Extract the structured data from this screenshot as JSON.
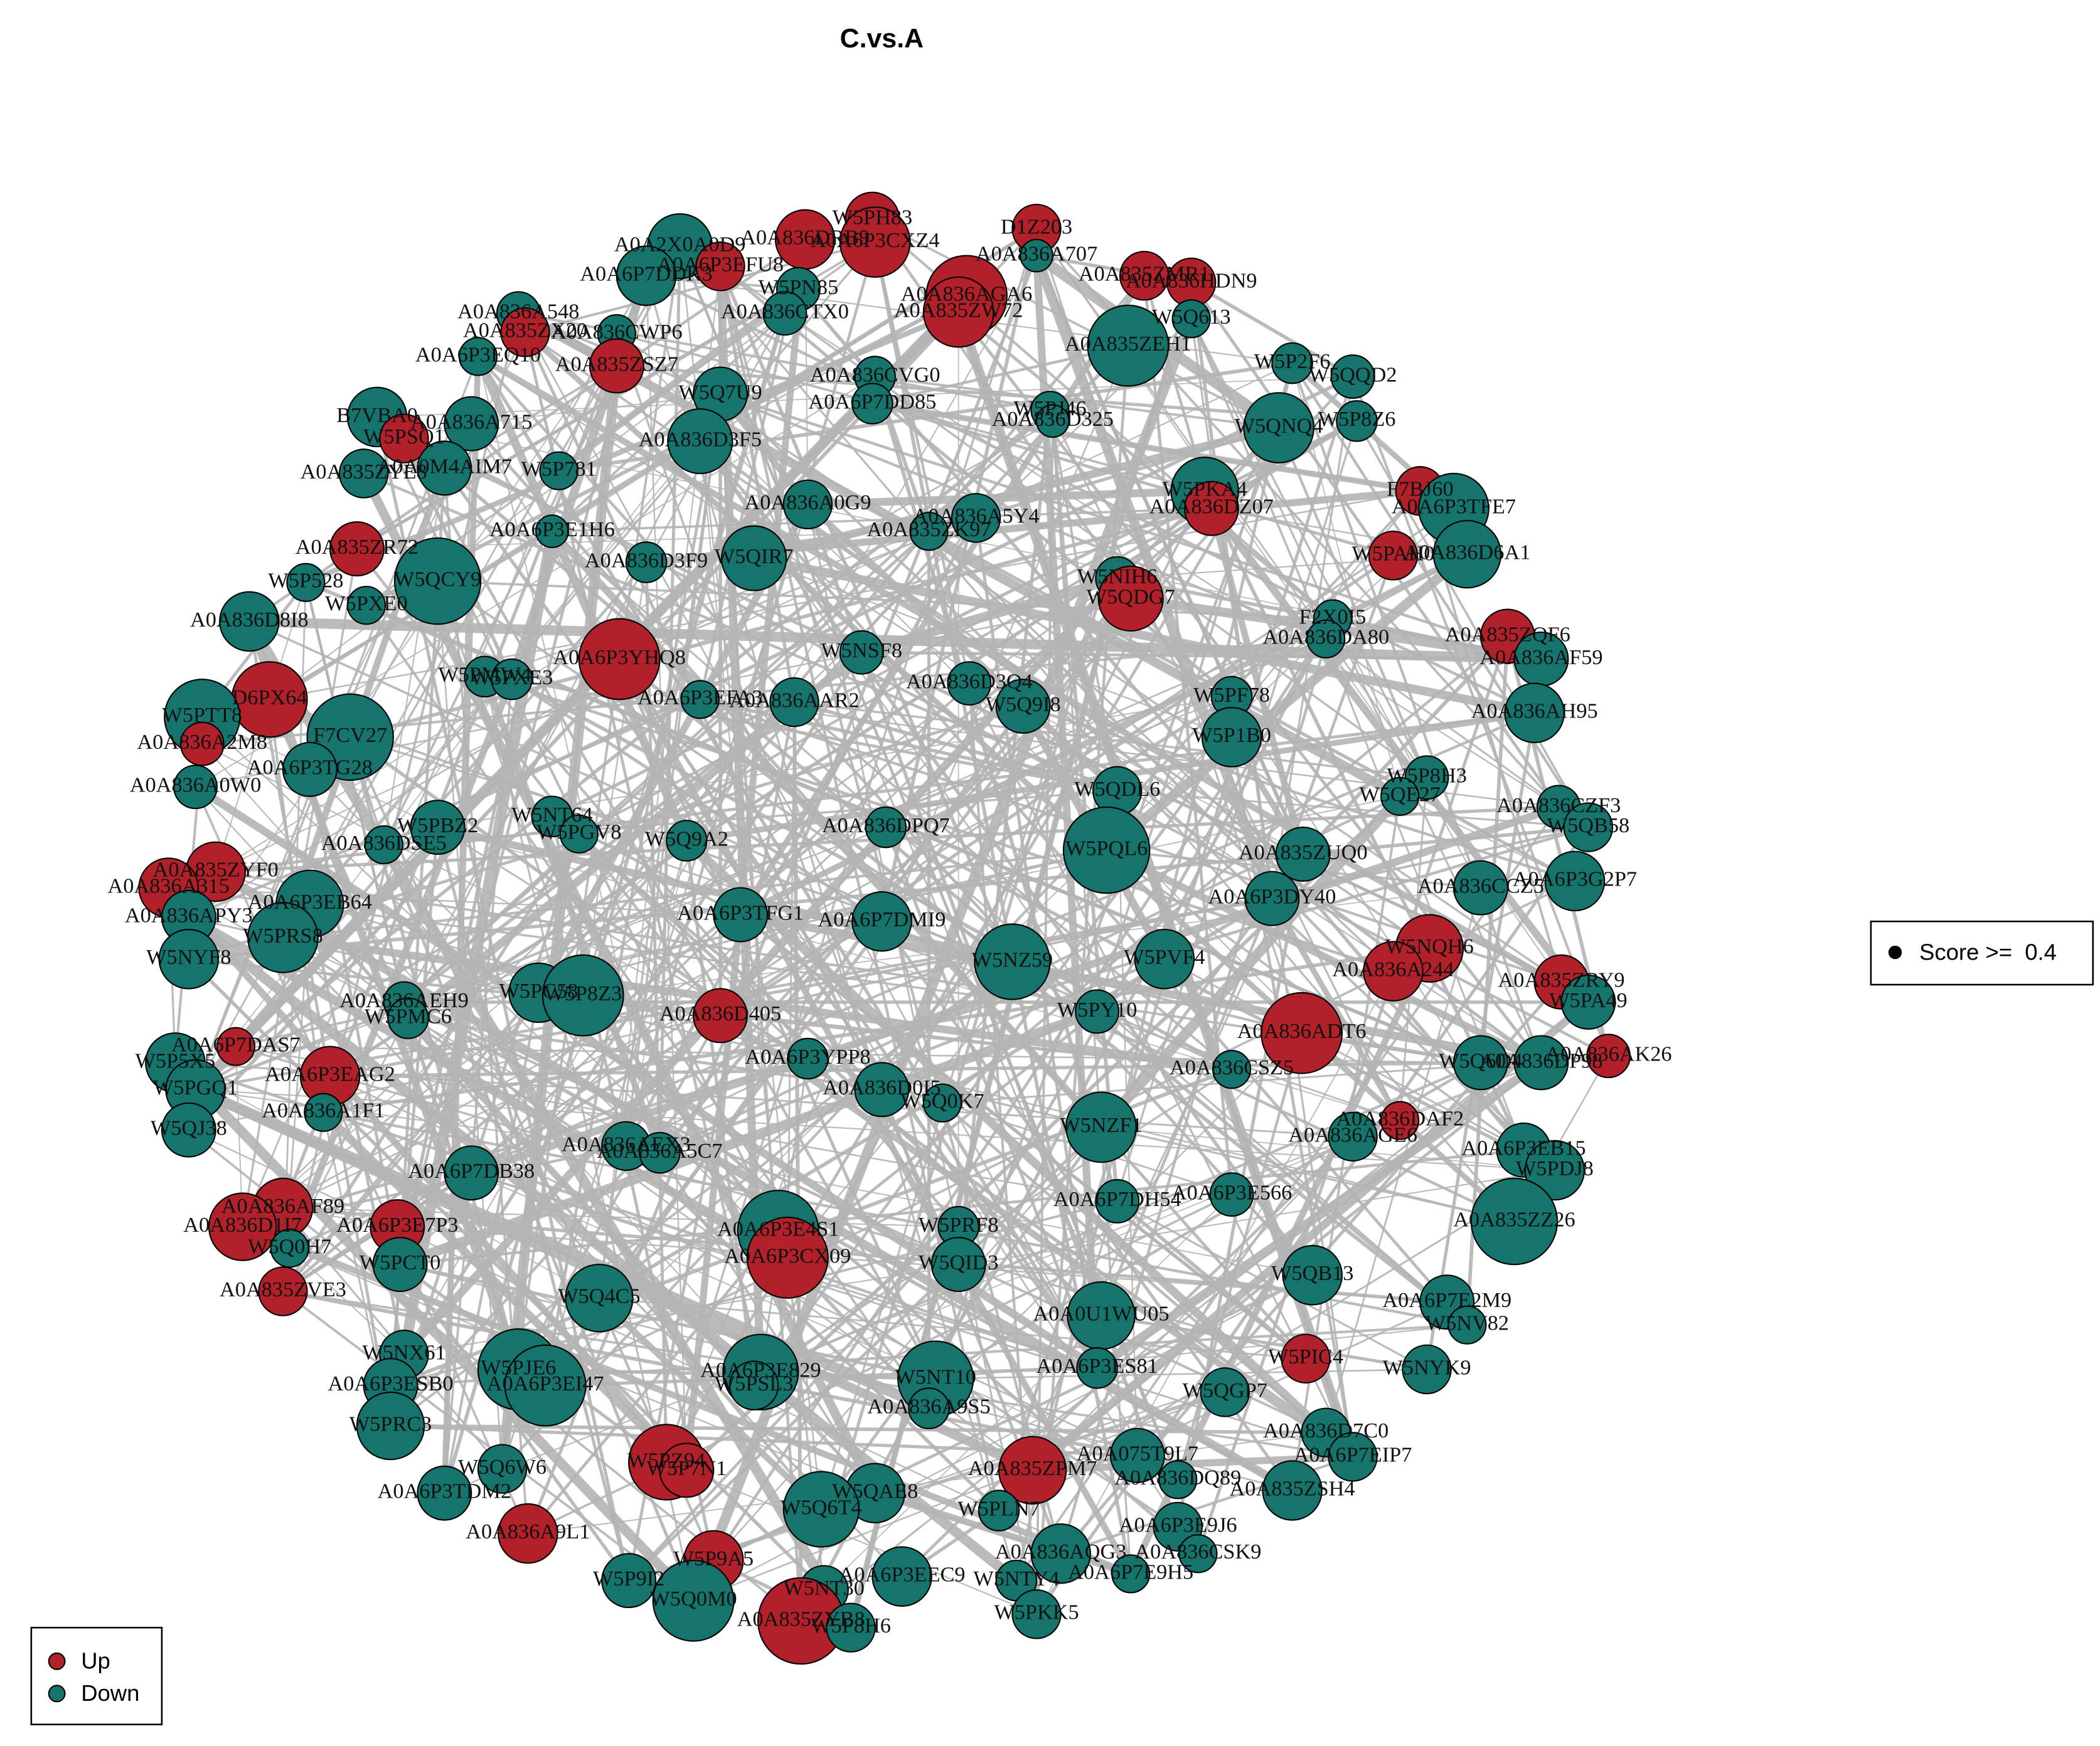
{
  "title": "C.vs.A",
  "score_legend": "Score >=  0.4",
  "legend": [
    {
      "label": "Up",
      "color": "#b2202a"
    },
    {
      "label": "Down",
      "color": "#15756d"
    }
  ],
  "nodes": [
    {
      "label": "A0A2X0A0D9",
      "status": "Down"
    },
    {
      "label": "A0A6P7DDK3",
      "status": "Down"
    },
    {
      "label": "A0A6P3EFU8",
      "status": "Up"
    },
    {
      "label": "W5PH83",
      "status": "Up"
    },
    {
      "label": "A0A836DRB9",
      "status": "Up"
    },
    {
      "label": "A0A6P3CXZ4",
      "status": "Up"
    },
    {
      "label": "D1Z203",
      "status": "Up"
    },
    {
      "label": "A0A836A707",
      "status": "Down"
    },
    {
      "label": "A0A836AGA6",
      "status": "Up"
    },
    {
      "label": "A0A835ZW72",
      "status": "Up"
    },
    {
      "label": "W5PN85",
      "status": "Down"
    },
    {
      "label": "A0A836CTX0",
      "status": "Down"
    },
    {
      "label": "A0A835ZMR1",
      "status": "Up"
    },
    {
      "label": "A0A836HDN9",
      "status": "Up"
    },
    {
      "label": "W5Q613",
      "status": "Down"
    },
    {
      "label": "A0A835ZEH1",
      "status": "Down"
    },
    {
      "label": "A0A836A548",
      "status": "Down"
    },
    {
      "label": "A0A835ZX20",
      "status": "Up"
    },
    {
      "label": "A0A836CWP6",
      "status": "Down"
    },
    {
      "label": "A0A6P3EQ10",
      "status": "Down"
    },
    {
      "label": "A0A835ZSZ7",
      "status": "Up"
    },
    {
      "label": "W5Q7U9",
      "status": "Down"
    },
    {
      "label": "A0A836CVG0",
      "status": "Down"
    },
    {
      "label": "A0A6P7DD85",
      "status": "Down"
    },
    {
      "label": "W5P2F6",
      "status": "Down"
    },
    {
      "label": "W5QQD2",
      "status": "Down"
    },
    {
      "label": "W5PJ46",
      "status": "Down"
    },
    {
      "label": "A0A836D325",
      "status": "Down"
    },
    {
      "label": "W5P8Z6",
      "status": "Down"
    },
    {
      "label": "W5QNQ4",
      "status": "Down"
    },
    {
      "label": "B7VBA0",
      "status": "Down"
    },
    {
      "label": "A0A836A715",
      "status": "Down"
    },
    {
      "label": "W5PSQ1",
      "status": "Up"
    },
    {
      "label": "A0A836D3F5",
      "status": "Down"
    },
    {
      "label": "A0A835ZYE8",
      "status": "Down"
    },
    {
      "label": "A0A0M4AIM7",
      "status": "Down"
    },
    {
      "label": "W5P781",
      "status": "Down"
    },
    {
      "label": "A0A836A0G9",
      "status": "Down"
    },
    {
      "label": "W5PKA4",
      "status": "Down"
    },
    {
      "label": "A0A836DZ07",
      "status": "Up"
    },
    {
      "label": "F7BJ60",
      "status": "Up"
    },
    {
      "label": "A0A6P3TFE7",
      "status": "Down"
    },
    {
      "label": "A0A6P3E1H6",
      "status": "Down"
    },
    {
      "label": "A0A836A5Y4",
      "status": "Down"
    },
    {
      "label": "A0A835ZK97",
      "status": "Down"
    },
    {
      "label": "A0A835ZR72",
      "status": "Up"
    },
    {
      "label": "W5QCY9",
      "status": "Down"
    },
    {
      "label": "W5P528",
      "status": "Down"
    },
    {
      "label": "A0A836D3F9",
      "status": "Down"
    },
    {
      "label": "W5QIR7",
      "status": "Down"
    },
    {
      "label": "A0A836D6A1",
      "status": "Down"
    },
    {
      "label": "W5PAH0",
      "status": "Up"
    },
    {
      "label": "W5NIH6",
      "status": "Down"
    },
    {
      "label": "W5QDG7",
      "status": "Up"
    },
    {
      "label": "W5PXE0",
      "status": "Down"
    },
    {
      "label": "A0A836D8I8",
      "status": "Down"
    },
    {
      "label": "F2X0I5",
      "status": "Down"
    },
    {
      "label": "A0A836DA80",
      "status": "Down"
    },
    {
      "label": "A0A835ZQF6",
      "status": "Up"
    },
    {
      "label": "A0A836AF59",
      "status": "Down"
    },
    {
      "label": "W5NSF8",
      "status": "Down"
    },
    {
      "label": "A0A6P3YHQ8",
      "status": "Up"
    },
    {
      "label": "W5PMW4",
      "status": "Down"
    },
    {
      "label": "W5PXE3",
      "status": "Down"
    },
    {
      "label": "A0A836D3Q4",
      "status": "Down"
    },
    {
      "label": "W5Q9I8",
      "status": "Down"
    },
    {
      "label": "W5PF78",
      "status": "Down"
    },
    {
      "label": "W5P1B0",
      "status": "Down"
    },
    {
      "label": "D6PX64",
      "status": "Up"
    },
    {
      "label": "W5PTT8",
      "status": "Down"
    },
    {
      "label": "A0A6P3EFA3",
      "status": "Down"
    },
    {
      "label": "A0A836AAR2",
      "status": "Down"
    },
    {
      "label": "A0A836AH95",
      "status": "Down"
    },
    {
      "label": "A0A836A2M8",
      "status": "Up"
    },
    {
      "label": "F7CV27",
      "status": "Down"
    },
    {
      "label": "A0A6P3TG28",
      "status": "Down"
    },
    {
      "label": "W5P8H3",
      "status": "Down"
    },
    {
      "label": "A0A836A0W0",
      "status": "Down"
    },
    {
      "label": "W5QDL6",
      "status": "Down"
    },
    {
      "label": "W5QE27",
      "status": "Down"
    },
    {
      "label": "A0A836CZF3",
      "status": "Down"
    },
    {
      "label": "W5QB58",
      "status": "Down"
    },
    {
      "label": "W5NT64",
      "status": "Down"
    },
    {
      "label": "W5PBZ2",
      "status": "Down"
    },
    {
      "label": "A0A836DSE5",
      "status": "Down"
    },
    {
      "label": "W5PGV8",
      "status": "Down"
    },
    {
      "label": "W5Q9A2",
      "status": "Down"
    },
    {
      "label": "A0A836DPQ7",
      "status": "Down"
    },
    {
      "label": "W5PQL6",
      "status": "Down"
    },
    {
      "label": "A0A835ZUQ0",
      "status": "Down"
    },
    {
      "label": "A0A6P3G2P7",
      "status": "Down"
    },
    {
      "label": "A0A836CCZ5",
      "status": "Down"
    },
    {
      "label": "A0A835ZYF0",
      "status": "Up"
    },
    {
      "label": "A0A836A315",
      "status": "Up"
    },
    {
      "label": "A0A6P3EB64",
      "status": "Down"
    },
    {
      "label": "A0A6P3DY40",
      "status": "Down"
    },
    {
      "label": "A0A6P3TFG1",
      "status": "Down"
    },
    {
      "label": "A0A6P7DMI9",
      "status": "Down"
    },
    {
      "label": "A0A836APY3",
      "status": "Down"
    },
    {
      "label": "W5PRS8",
      "status": "Down"
    },
    {
      "label": "W5NQH6",
      "status": "Up"
    },
    {
      "label": "A0A836A244",
      "status": "Up"
    },
    {
      "label": "W5NYF8",
      "status": "Down"
    },
    {
      "label": "W5NZ59",
      "status": "Down"
    },
    {
      "label": "W5PVF4",
      "status": "Down"
    },
    {
      "label": "A0A835ZRY9",
      "status": "Up"
    },
    {
      "label": "W5PA49",
      "status": "Down"
    },
    {
      "label": "W5PC58",
      "status": "Down"
    },
    {
      "label": "W5P8Z3",
      "status": "Down"
    },
    {
      "label": "A0A836AEH9",
      "status": "Down"
    },
    {
      "label": "W5PMC6",
      "status": "Down"
    },
    {
      "label": "A0A836D405",
      "status": "Up"
    },
    {
      "label": "W5PY10",
      "status": "Down"
    },
    {
      "label": "A0A836ADT6",
      "status": "Up"
    },
    {
      "label": "A0A6P7DAS7",
      "status": "Up"
    },
    {
      "label": "A0A6P3YPP8",
      "status": "Down"
    },
    {
      "label": "A0A6P3EAG2",
      "status": "Up"
    },
    {
      "label": "W5P5X5",
      "status": "Down"
    },
    {
      "label": "W5Q6D4",
      "status": "Down"
    },
    {
      "label": "A0A836DP98",
      "status": "Down"
    },
    {
      "label": "A0A836AK26",
      "status": "Up"
    },
    {
      "label": "A0A836CSZ5",
      "status": "Down"
    },
    {
      "label": "W5PGQ1",
      "status": "Down"
    },
    {
      "label": "A0A836D0I5",
      "status": "Down"
    },
    {
      "label": "A0A836A1F1",
      "status": "Down"
    },
    {
      "label": "W5Q0K7",
      "status": "Down"
    },
    {
      "label": "W5NZF1",
      "status": "Down"
    },
    {
      "label": "A0A836DAF2",
      "status": "Up"
    },
    {
      "label": "A0A836AGE6",
      "status": "Down"
    },
    {
      "label": "W5QJ38",
      "status": "Down"
    },
    {
      "label": "A0A836AEX3",
      "status": "Down"
    },
    {
      "label": "A0A836A5C7",
      "status": "Down"
    },
    {
      "label": "A0A6P3EB15",
      "status": "Down"
    },
    {
      "label": "W5PDJ8",
      "status": "Down"
    },
    {
      "label": "A0A6P7DB38",
      "status": "Down"
    },
    {
      "label": "A0A836AF89",
      "status": "Up"
    },
    {
      "label": "A0A6P7DH54",
      "status": "Down"
    },
    {
      "label": "A0A6P3E566",
      "status": "Down"
    },
    {
      "label": "A0A6P3E7P3",
      "status": "Up"
    },
    {
      "label": "A0A836D1I7",
      "status": "Up"
    },
    {
      "label": "A0A835ZZ26",
      "status": "Down"
    },
    {
      "label": "A0A6P3E4S1",
      "status": "Down"
    },
    {
      "label": "A0A6P3CX09",
      "status": "Up"
    },
    {
      "label": "W5PRF8",
      "status": "Down"
    },
    {
      "label": "W5Q0H7",
      "status": "Down"
    },
    {
      "label": "W5PCT0",
      "status": "Down"
    },
    {
      "label": "W5QID3",
      "status": "Down"
    },
    {
      "label": "W5QB13",
      "status": "Down"
    },
    {
      "label": "A0A835ZVE3",
      "status": "Up"
    },
    {
      "label": "W5Q4C5",
      "status": "Down"
    },
    {
      "label": "A0A0U1WU05",
      "status": "Down"
    },
    {
      "label": "A0A6P7E2M9",
      "status": "Down"
    },
    {
      "label": "W5NV82",
      "status": "Down"
    },
    {
      "label": "W5NX61",
      "status": "Down"
    },
    {
      "label": "W5PJE6",
      "status": "Down"
    },
    {
      "label": "A0A6P3E829",
      "status": "Down"
    },
    {
      "label": "W5PIC4",
      "status": "Up"
    },
    {
      "label": "W5NYK9",
      "status": "Down"
    },
    {
      "label": "A0A6P3ES81",
      "status": "Down"
    },
    {
      "label": "W5NT10",
      "status": "Down"
    },
    {
      "label": "A0A6P3ESB0",
      "status": "Down"
    },
    {
      "label": "A0A6P3EI47",
      "status": "Down"
    },
    {
      "label": "W5PSL3",
      "status": "Down"
    },
    {
      "label": "A0A836A9S5",
      "status": "Down"
    },
    {
      "label": "W5QGP7",
      "status": "Down"
    },
    {
      "label": "W5PRC3",
      "status": "Down"
    },
    {
      "label": "A0A836D7C0",
      "status": "Down"
    },
    {
      "label": "W5Q6W6",
      "status": "Down"
    },
    {
      "label": "W5PZ94",
      "status": "Up"
    },
    {
      "label": "W5P7N1",
      "status": "Up"
    },
    {
      "label": "A0A075T9L7",
      "status": "Down"
    },
    {
      "label": "A0A6P7EIP7",
      "status": "Down"
    },
    {
      "label": "A0A835ZPM7",
      "status": "Up"
    },
    {
      "label": "A0A6P3TDM2",
      "status": "Down"
    },
    {
      "label": "W5QAE8",
      "status": "Down"
    },
    {
      "label": "A0A836DQ89",
      "status": "Down"
    },
    {
      "label": "A0A835ZSH4",
      "status": "Down"
    },
    {
      "label": "W5Q6T4",
      "status": "Down"
    },
    {
      "label": "W5PLN7",
      "status": "Down"
    },
    {
      "label": "A0A836A9L1",
      "status": "Up"
    },
    {
      "label": "A0A6P3E9J6",
      "status": "Down"
    },
    {
      "label": "A0A836AQG3",
      "status": "Down"
    },
    {
      "label": "A0A836CSK9",
      "status": "Down"
    },
    {
      "label": "W5P9A5",
      "status": "Up"
    },
    {
      "label": "A0A6P7E9H5",
      "status": "Down"
    },
    {
      "label": "W5P9I2",
      "status": "Down"
    },
    {
      "label": "A0A6P3EEC9",
      "status": "Down"
    },
    {
      "label": "W5NTY4",
      "status": "Down"
    },
    {
      "label": "W5NT30",
      "status": "Down"
    },
    {
      "label": "W5Q0M0",
      "status": "Down"
    },
    {
      "label": "W5PKK5",
      "status": "Down"
    },
    {
      "label": "A0A835ZYB8",
      "status": "Up"
    },
    {
      "label": "W5P8H6",
      "status": "Down"
    }
  ]
}
